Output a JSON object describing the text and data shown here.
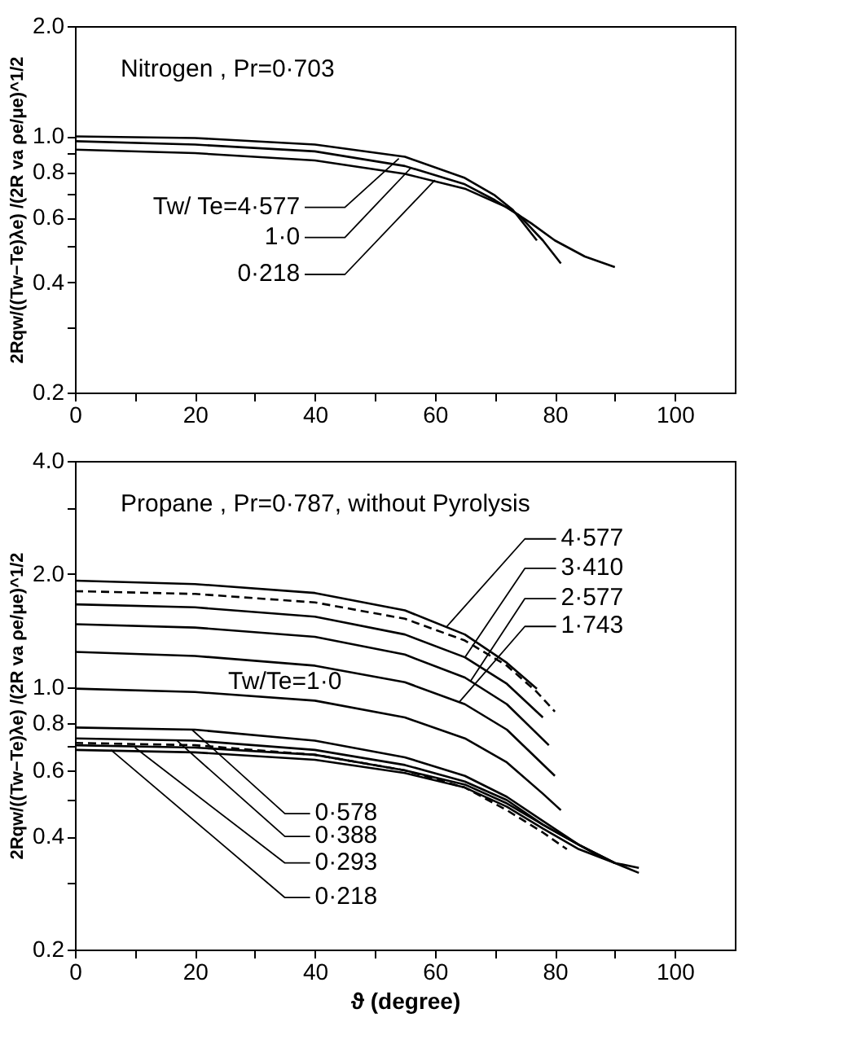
{
  "chart_data": [
    {
      "type": "line",
      "title": "Nitrogen , Pr=0·703",
      "ylabel": "2Rqw/((Tw−Te)λe) /(2R va ρe/μe)^1/2",
      "log": "y",
      "grid": false,
      "legend": false,
      "marker": "none",
      "line_style": "solid",
      "xlim": [
        0,
        110
      ],
      "xticks": [
        0,
        {
          "value": 10,
          "label": null
        },
        20,
        {
          "value": 30,
          "label": null
        },
        40,
        {
          "value": 50,
          "label": null
        },
        60,
        {
          "value": 70,
          "label": null
        },
        80,
        {
          "value": 90,
          "label": null
        },
        100
      ],
      "ylim": [
        0.2,
        2.0
      ],
      "yticks": [
        {
          "value": 0.2,
          "label": "0.2"
        },
        {
          "value": 0.3,
          "label": null
        },
        0.4,
        {
          "value": 0.5,
          "label": null
        },
        0.6,
        {
          "value": 0.7,
          "label": null
        },
        0.8,
        {
          "value": 0.9,
          "label": null
        },
        {
          "value": 1.0,
          "label": "1.0"
        },
        {
          "value": 2.0,
          "label": "2.0"
        }
      ],
      "series": [
        {
          "color": "#000000",
          "x": [
            0,
            20,
            40,
            55,
            65,
            70,
            73,
            77
          ],
          "values": [
            1.0,
            0.99,
            0.95,
            0.88,
            0.77,
            0.69,
            0.63,
            0.52
          ]
        },
        {
          "color": "#000000",
          "x": [
            0,
            20,
            40,
            55,
            65,
            70,
            74,
            78,
            81
          ],
          "values": [
            0.97,
            0.95,
            0.91,
            0.83,
            0.74,
            0.67,
            0.61,
            0.52,
            0.45
          ]
        },
        {
          "color": "#000000",
          "x": [
            0,
            20,
            40,
            55,
            65,
            72,
            76,
            80,
            85,
            90
          ],
          "values": [
            0.92,
            0.9,
            0.86,
            0.79,
            0.72,
            0.64,
            0.58,
            0.52,
            0.47,
            0.44
          ]
        }
      ],
      "annotations": [
        {
          "text": "Tw/ Te=4·577",
          "x": 54,
          "y": 0.87
        },
        {
          "text": "1·0",
          "x": 56,
          "y": 0.82
        },
        {
          "text": "0·218",
          "x": 60,
          "y": 0.76
        }
      ]
    },
    {
      "type": "line",
      "title": "Propane , Pr=0·787, without  Pyrolysis",
      "xlabel": "ϑ (degree)",
      "ylabel": "2Rqw/((Tw−Te)λe) /(2R va ρe/μe)^1/2",
      "log": "y",
      "grid": false,
      "legend": false,
      "marker": "none",
      "xlim": [
        0,
        110
      ],
      "xticks": [
        0,
        {
          "value": 10,
          "label": null
        },
        20,
        {
          "value": 30,
          "label": null
        },
        40,
        {
          "value": 50,
          "label": null
        },
        60,
        {
          "value": 70,
          "label": null
        },
        80,
        {
          "value": 90,
          "label": null
        },
        100
      ],
      "ylim": [
        0.2,
        4.0
      ],
      "yticks": [
        {
          "value": 0.2,
          "label": "0.2"
        },
        {
          "value": 0.3,
          "label": null
        },
        0.4,
        {
          "value": 0.5,
          "label": null
        },
        0.6,
        {
          "value": 0.7,
          "label": null
        },
        0.8,
        {
          "value": 1.0,
          "label": "1.0"
        },
        {
          "value": 2.0,
          "label": "2.0"
        },
        {
          "value": 3.0,
          "label": null
        },
        {
          "value": 4.0,
          "label": "4.0"
        }
      ],
      "series": [
        {
          "color": "#000000",
          "line_style": "solid",
          "x": [
            0,
            20,
            40,
            55,
            65,
            72,
            77
          ],
          "values": [
            1.92,
            1.88,
            1.78,
            1.6,
            1.38,
            1.16,
            0.99
          ]
        },
        {
          "color": "#000000",
          "line_style": "dashed",
          "x": [
            0,
            20,
            40,
            55,
            65,
            72,
            77,
            80
          ],
          "values": [
            1.8,
            1.77,
            1.68,
            1.52,
            1.33,
            1.14,
            0.97,
            0.86
          ]
        },
        {
          "color": "#000000",
          "line_style": "solid",
          "x": [
            0,
            20,
            40,
            55,
            65,
            72,
            78
          ],
          "values": [
            1.66,
            1.63,
            1.54,
            1.38,
            1.2,
            1.02,
            0.83
          ]
        },
        {
          "color": "#000000",
          "line_style": "solid",
          "x": [
            0,
            20,
            40,
            55,
            65,
            72,
            79
          ],
          "values": [
            1.47,
            1.44,
            1.36,
            1.22,
            1.06,
            0.9,
            0.7
          ]
        },
        {
          "color": "#000000",
          "line_style": "solid",
          "x": [
            0,
            20,
            40,
            55,
            65,
            72,
            80
          ],
          "values": [
            1.24,
            1.21,
            1.14,
            1.03,
            0.9,
            0.77,
            0.58
          ]
        },
        {
          "color": "#000000",
          "line_style": "solid",
          "x": [
            0,
            20,
            40,
            55,
            65,
            72,
            78,
            81
          ],
          "values": [
            0.99,
            0.97,
            0.92,
            0.83,
            0.73,
            0.63,
            0.52,
            0.47
          ]
        },
        {
          "color": "#000000",
          "line_style": "solid",
          "x": [
            0,
            20,
            40,
            55,
            65,
            72,
            78,
            84,
            88
          ],
          "values": [
            0.78,
            0.77,
            0.72,
            0.65,
            0.58,
            0.51,
            0.44,
            0.38,
            0.35
          ]
        },
        {
          "color": "#000000",
          "line_style": "solid",
          "x": [
            0,
            20,
            40,
            55,
            65,
            72,
            78,
            84,
            90
          ],
          "values": [
            0.73,
            0.72,
            0.68,
            0.62,
            0.56,
            0.5,
            0.43,
            0.38,
            0.34
          ]
        },
        {
          "color": "#000000",
          "line_style": "dashed",
          "x": [
            0,
            20,
            40,
            55,
            65,
            72,
            78,
            82
          ],
          "values": [
            0.71,
            0.7,
            0.66,
            0.6,
            0.54,
            0.47,
            0.41,
            0.37
          ]
        },
        {
          "color": "#000000",
          "line_style": "solid",
          "x": [
            0,
            20,
            40,
            55,
            65,
            72,
            78,
            84,
            90,
            94
          ],
          "values": [
            0.7,
            0.69,
            0.66,
            0.6,
            0.55,
            0.49,
            0.43,
            0.38,
            0.34,
            0.33
          ]
        },
        {
          "color": "#000000",
          "line_style": "solid",
          "x": [
            0,
            20,
            40,
            55,
            65,
            72,
            78,
            84,
            90,
            94
          ],
          "values": [
            0.68,
            0.67,
            0.64,
            0.59,
            0.54,
            0.48,
            0.42,
            0.37,
            0.34,
            0.32
          ]
        }
      ],
      "annotations": [
        {
          "text": "4·577",
          "x": 62,
          "y": 1.45
        },
        {
          "text": "3·410",
          "x": 65,
          "y": 1.2
        },
        {
          "text": "2·577",
          "x": 66,
          "y": 1.04
        },
        {
          "text": "1·743",
          "x": 64,
          "y": 0.91
        },
        {
          "text": "Tw/Te=1·0",
          "x": 35,
          "y": 0.95
        },
        {
          "text": "0·578",
          "x": 19.5,
          "y": 0.77
        },
        {
          "text": "0·388",
          "x": 17,
          "y": 0.72
        },
        {
          "text": "0·293",
          "x": 10,
          "y": 0.69
        },
        {
          "text": "0·218",
          "x": 6,
          "y": 0.68
        }
      ]
    }
  ]
}
